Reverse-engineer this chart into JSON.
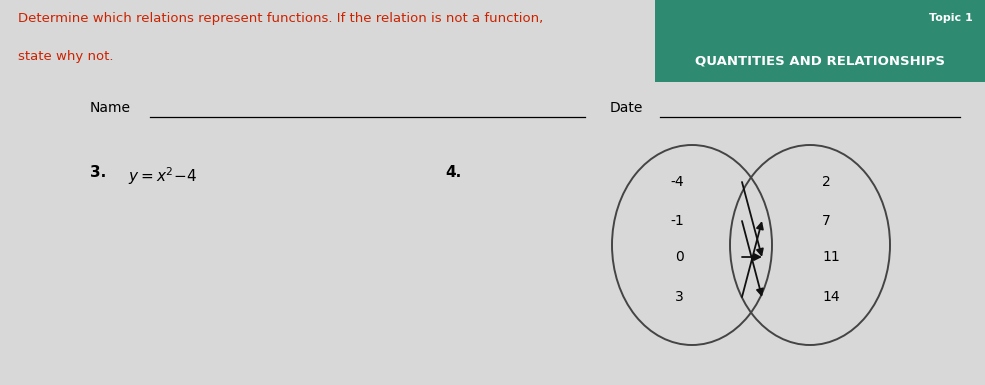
{
  "bg_color": "#d8d8d8",
  "header_color": "#2e8b72",
  "header_title": "Topic 1",
  "header_subtitle": "QUANTITIES AND RELATIONSHIPS",
  "instruction_text_line1": "Determine which relations represent functions. If the relation is not a function,",
  "instruction_text_line2": "state why not.",
  "instruction_color": "#cc2200",
  "name_label": "Name",
  "date_label": "Date",
  "problem3_label": "3.",
  "problem4_label": "4.",
  "left_values": [
    "-4",
    "-1",
    "0",
    "3"
  ],
  "right_values": [
    "2",
    "7",
    "11",
    "14"
  ],
  "arrows": [
    [
      0,
      2
    ],
    [
      1,
      3
    ],
    [
      2,
      2
    ],
    [
      3,
      1
    ]
  ],
  "figwidth": 9.85,
  "figheight": 3.85,
  "dpi": 100
}
